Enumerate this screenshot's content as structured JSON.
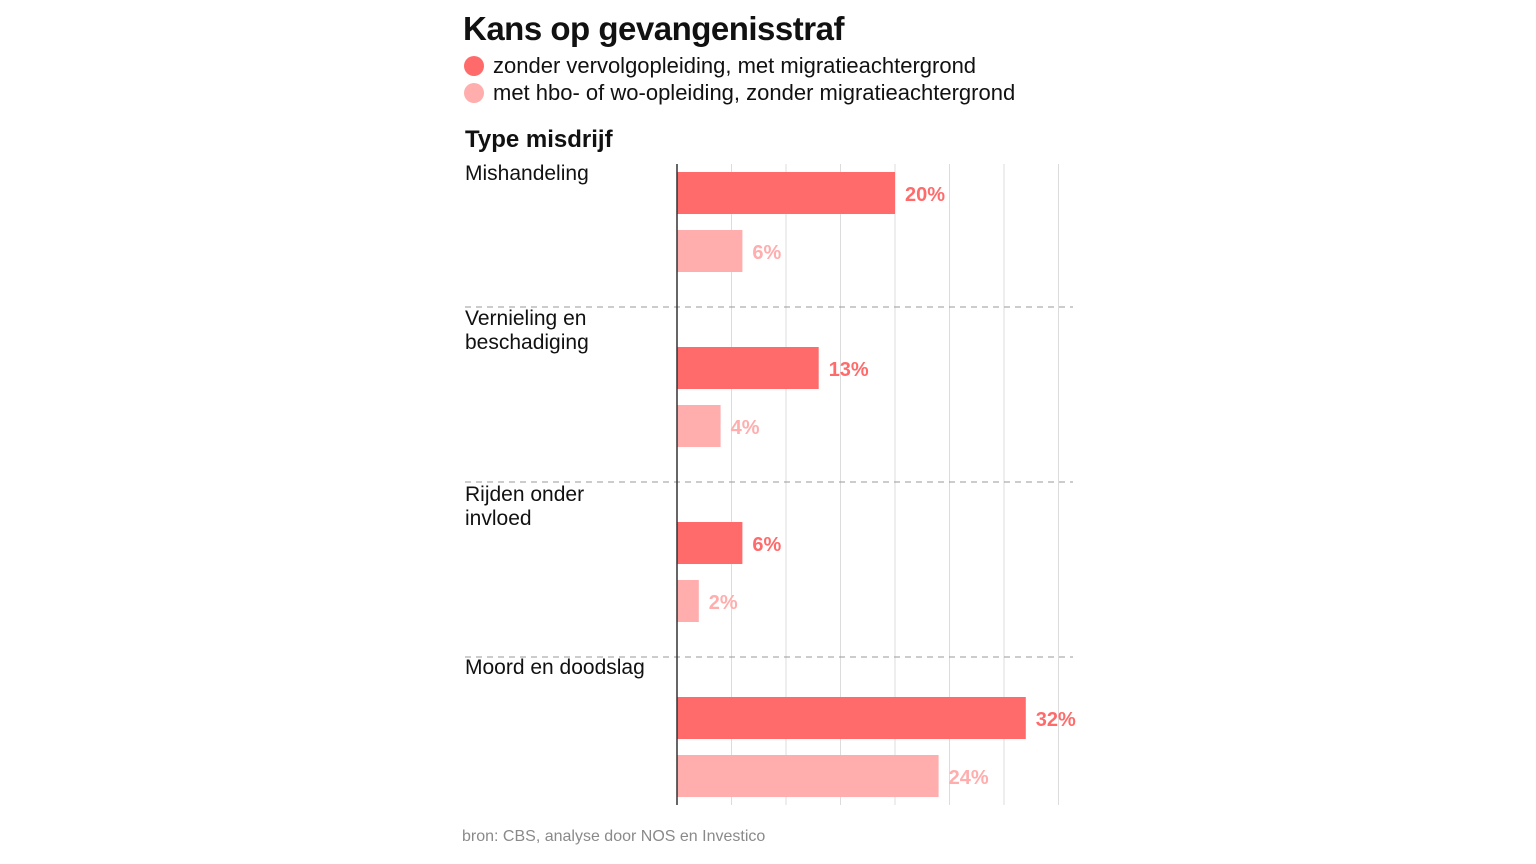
{
  "chart_data": {
    "type": "bar",
    "orientation": "horizontal",
    "title": "Kans op gevangenisstraf",
    "ylabel": "Type misdrijf",
    "categories": [
      [
        "Mishandeling"
      ],
      [
        "Vernieling en",
        "beschadiging"
      ],
      [
        "Rijden onder",
        "invloed"
      ],
      [
        "Moord en doodslag"
      ]
    ],
    "series": [
      {
        "name": "zonder vervolgopleiding, met migratieachtergrond",
        "color": "#ff6b6b",
        "values": [
          20,
          13,
          6,
          32
        ],
        "labels": [
          "20%",
          "13%",
          "6%",
          "32%"
        ]
      },
      {
        "name": "met hbo- of wo-opleiding, zonder migratieachtergrond",
        "color": "#ffadad",
        "values": [
          6,
          4,
          2,
          24
        ],
        "labels": [
          "6%",
          "4%",
          "2%",
          "24%"
        ]
      }
    ],
    "xlim": [
      0,
      35
    ],
    "grid": true,
    "legend_position": "top-left",
    "source": "bron: CBS, analyse door NOS en Investico"
  }
}
